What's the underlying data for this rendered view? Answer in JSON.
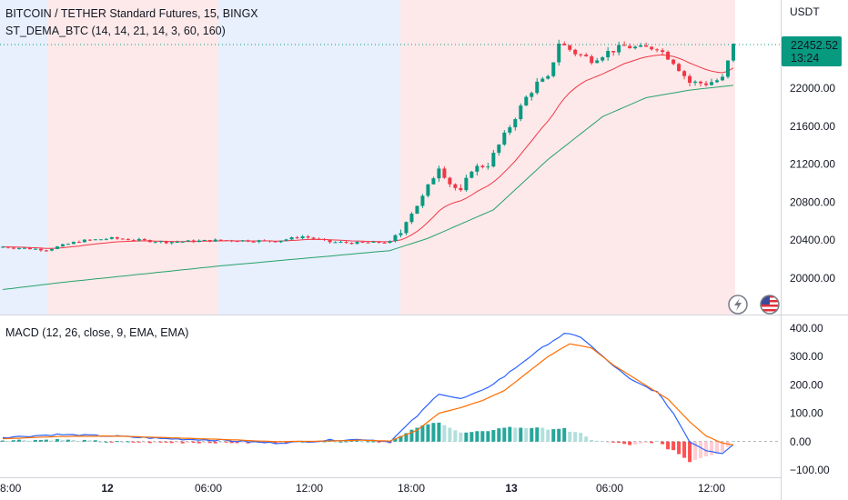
{
  "header": {
    "title": "BITCOIN / TETHER Standard Futures, 15, BINGX",
    "indicator": "ST_DEMA_BTC (14, 14, 21, 14, 3, 60, 160)",
    "macd_label": "MACD (12, 26, close, 9, EMA, EMA)"
  },
  "price_axis": {
    "unit": "USDT",
    "ticks": [
      "22000.00",
      "21600.00",
      "21200.00",
      "20800.00",
      "20400.00",
      "20000.00"
    ],
    "tick_values": [
      22000,
      21600,
      21200,
      20800,
      20400,
      20000
    ],
    "last_price": "22452.52",
    "countdown": "13:24"
  },
  "macd_axis": {
    "ticks": [
      "400.00",
      "300.00",
      "200.00",
      "100.00",
      "0.00",
      "−100.00"
    ],
    "tick_values": [
      400,
      300,
      200,
      100,
      0,
      -100
    ]
  },
  "time_axis": {
    "ticks": [
      "8:00",
      "12",
      "06:00",
      "12:00",
      "18:00",
      "13",
      "06:00",
      "12:00"
    ],
    "bold": [
      false,
      true,
      false,
      false,
      false,
      true,
      false,
      false
    ]
  },
  "colors": {
    "up": "#089981",
    "down": "#f23645",
    "fast_line": "#f23645",
    "slow_line": "#26a269",
    "macd_line": "#2962ff",
    "signal_line": "#ff6d00",
    "bg_blue": "#e8effd",
    "bg_red": "#fde9ea",
    "price_tag": "#089981"
  },
  "icons": {
    "lightning": "lightning-icon",
    "flag": "us-flag-icon"
  },
  "chart_data": {
    "type": "candlestick",
    "ylim": [
      19800,
      22620
    ],
    "macd_ylim": [
      -115,
      415
    ],
    "candles": [],
    "ma_fast": [],
    "ma_slow": [],
    "macd": [],
    "signal": [],
    "histogram": []
  }
}
